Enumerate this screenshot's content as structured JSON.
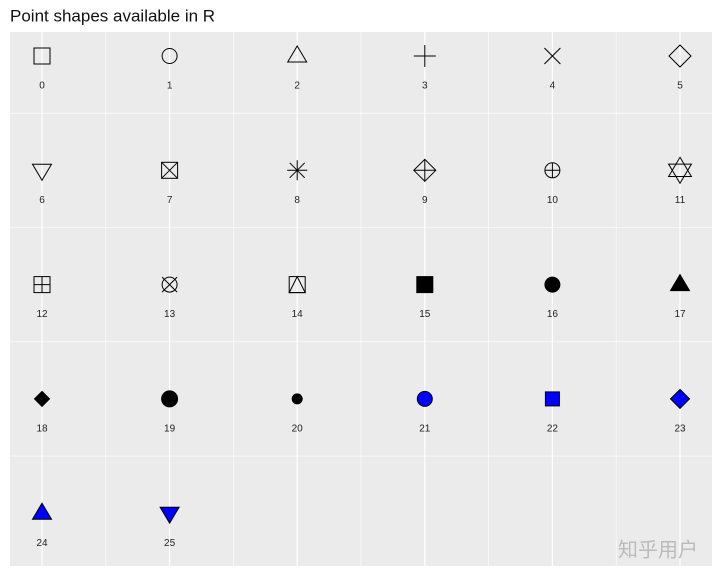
{
  "title": "Point shapes available in R",
  "watermark": "知乎用户",
  "points": [
    {
      "pch": 0
    },
    {
      "pch": 1
    },
    {
      "pch": 2
    },
    {
      "pch": 3
    },
    {
      "pch": 4
    },
    {
      "pch": 5
    },
    {
      "pch": 6
    },
    {
      "pch": 7
    },
    {
      "pch": 8
    },
    {
      "pch": 9
    },
    {
      "pch": 10
    },
    {
      "pch": 11
    },
    {
      "pch": 12
    },
    {
      "pch": 13
    },
    {
      "pch": 14
    },
    {
      "pch": 15
    },
    {
      "pch": 16
    },
    {
      "pch": 17
    },
    {
      "pch": 18
    },
    {
      "pch": 19
    },
    {
      "pch": 20
    },
    {
      "pch": 21,
      "fill": "#0000ff"
    },
    {
      "pch": 22,
      "fill": "#0000ff"
    },
    {
      "pch": 23,
      "fill": "#0000ff"
    },
    {
      "pch": 24,
      "fill": "#0000ff"
    },
    {
      "pch": 25,
      "fill": "#0000ff"
    }
  ]
}
